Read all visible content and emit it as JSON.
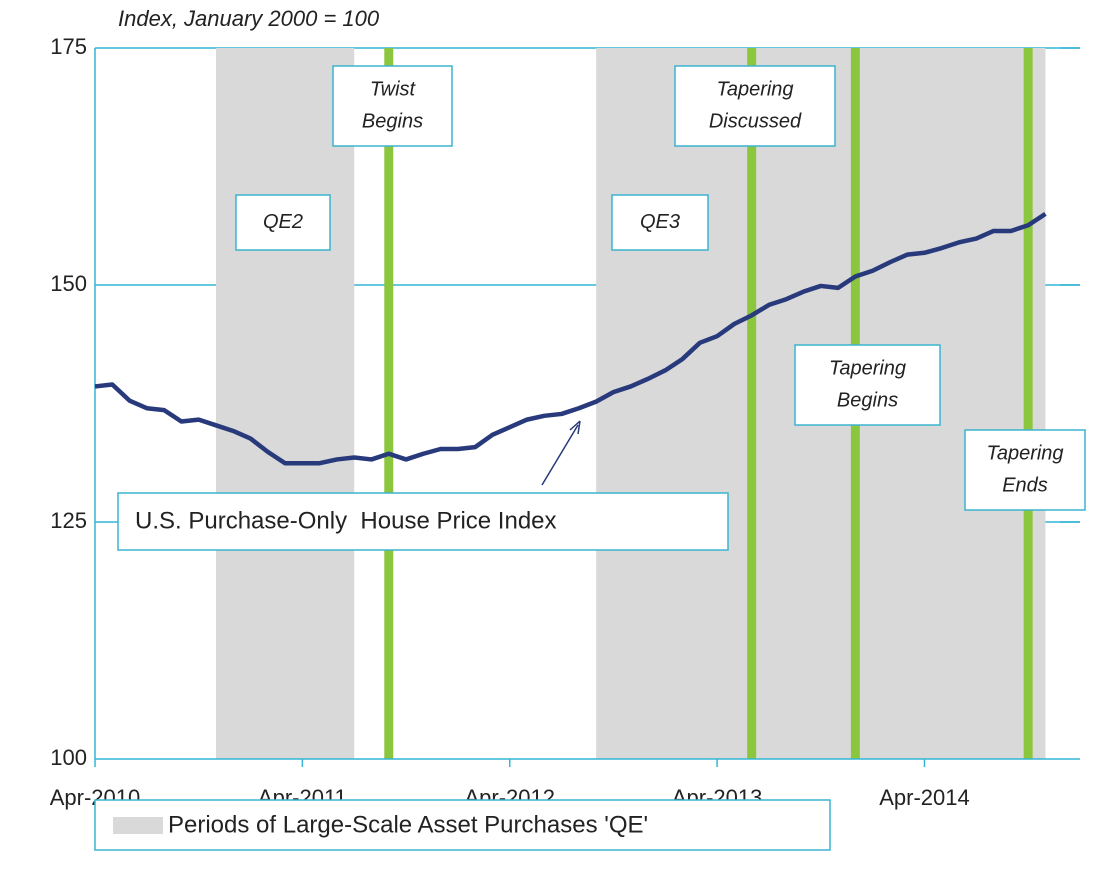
{
  "chart_data": {
    "type": "line",
    "title": "Index, January 2000 = 100",
    "x": [
      "2010-04",
      "2010-05",
      "2010-06",
      "2010-07",
      "2010-08",
      "2010-09",
      "2010-10",
      "2010-11",
      "2010-12",
      "2011-01",
      "2011-02",
      "2011-03",
      "2011-04",
      "2011-05",
      "2011-06",
      "2011-07",
      "2011-08",
      "2011-09",
      "2011-10",
      "2011-11",
      "2011-12",
      "2012-01",
      "2012-02",
      "2012-03",
      "2012-04",
      "2012-05",
      "2012-06",
      "2012-07",
      "2012-08",
      "2012-09",
      "2012-10",
      "2012-11",
      "2012-12",
      "2013-01",
      "2013-02",
      "2013-03",
      "2013-04",
      "2013-05",
      "2013-06",
      "2013-07",
      "2013-08",
      "2013-09",
      "2013-10",
      "2013-11",
      "2013-12",
      "2014-01",
      "2014-02",
      "2014-03",
      "2014-04",
      "2014-05",
      "2014-06",
      "2014-07",
      "2014-08",
      "2014-09",
      "2014-10",
      "2014-11"
    ],
    "series": [
      {
        "name": "U.S. Purchase-Only  House Price Index",
        "color": "#283a7b",
        "values": [
          139.3,
          139.5,
          137.8,
          137.0,
          136.8,
          135.6,
          135.8,
          135.2,
          134.6,
          133.8,
          132.4,
          131.2,
          131.2,
          131.2,
          131.6,
          131.8,
          131.6,
          132.2,
          131.6,
          132.2,
          132.7,
          132.7,
          132.9,
          134.2,
          135.0,
          135.8,
          136.2,
          136.4,
          137.0,
          137.7,
          138.7,
          139.3,
          140.1,
          141.0,
          142.2,
          143.9,
          144.6,
          145.9,
          146.8,
          147.9,
          148.5,
          149.3,
          149.9,
          149.7,
          150.9,
          151.5,
          152.4,
          153.2,
          153.4,
          153.9,
          154.5,
          154.9,
          155.7,
          155.7,
          156.3,
          157.5
        ]
      }
    ],
    "xlim": [
      "2010-04",
      "2015-01"
    ],
    "xticks": [
      {
        "value": "2010-04",
        "label": "Apr-2010"
      },
      {
        "value": "2011-04",
        "label": "Apr-2011"
      },
      {
        "value": "2012-04",
        "label": "Apr-2012"
      },
      {
        "value": "2013-04",
        "label": "Apr-2013"
      },
      {
        "value": "2014-04",
        "label": "Apr-2014"
      }
    ],
    "ylim": [
      100,
      175
    ],
    "yticks": [
      100,
      125,
      150,
      175
    ],
    "grid": true,
    "grid_color": "#33b5d5",
    "shade_color": "#d9d9d9",
    "event_color": "#8cc63f",
    "shaded_periods": [
      {
        "label": "QE2",
        "start": "2010-11",
        "end": "2011-07"
      },
      {
        "label": "QE3",
        "start": "2012-09",
        "end": "2014-11"
      }
    ],
    "events": [
      {
        "label": [
          "Twist",
          "Begins"
        ],
        "date": "2011-09"
      },
      {
        "label": [
          "Tapering",
          "Discussed"
        ],
        "date": "2013-06"
      },
      {
        "label": [
          "Tapering",
          "Begins"
        ],
        "date": "2013-12"
      },
      {
        "label": [
          "Tapering",
          "Ends"
        ],
        "date": "2014-10"
      }
    ],
    "legend_label": "Periods of Large-Scale Asset Purchases 'QE'"
  }
}
